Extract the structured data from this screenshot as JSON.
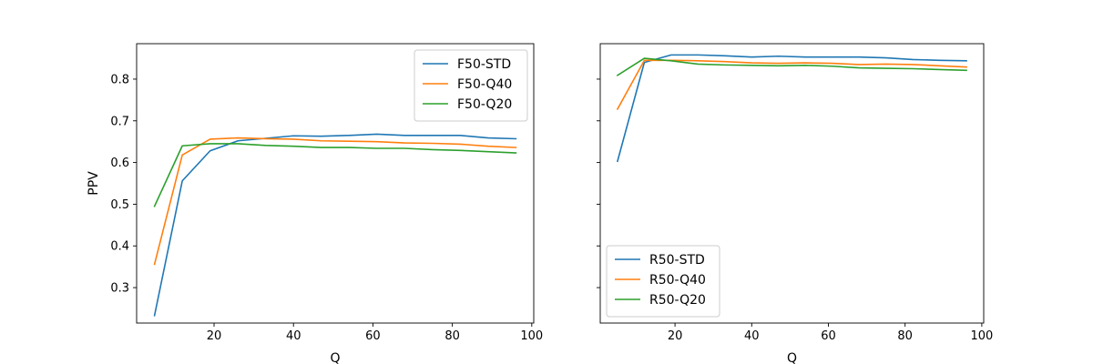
{
  "chart_data": [
    {
      "type": "line",
      "title": "",
      "xlabel": "Q",
      "ylabel": "PPV",
      "xlim": [
        0.5,
        100.5
      ],
      "ylim": [
        0.215,
        0.885
      ],
      "xticks": [
        20,
        40,
        60,
        80,
        100
      ],
      "yticks": [
        0.3,
        0.4,
        0.5,
        0.6,
        0.7,
        0.8
      ],
      "grid": false,
      "legend_position": "upper right",
      "x": [
        5,
        12,
        19,
        26,
        33,
        40,
        47,
        54,
        61,
        68,
        75,
        82,
        89,
        96
      ],
      "series": [
        {
          "name": "F50-STD",
          "color": "#1f77b4",
          "values": [
            0.233,
            0.556,
            0.628,
            0.652,
            0.658,
            0.664,
            0.663,
            0.665,
            0.668,
            0.665,
            0.665,
            0.665,
            0.659,
            0.657
          ]
        },
        {
          "name": "F50-Q40",
          "color": "#ff7f0e",
          "values": [
            0.356,
            0.618,
            0.656,
            0.659,
            0.657,
            0.656,
            0.652,
            0.651,
            0.65,
            0.647,
            0.646,
            0.644,
            0.639,
            0.636
          ]
        },
        {
          "name": "F50-Q20",
          "color": "#2ca02c",
          "values": [
            0.495,
            0.64,
            0.645,
            0.645,
            0.641,
            0.639,
            0.636,
            0.636,
            0.634,
            0.634,
            0.631,
            0.629,
            0.626,
            0.623
          ]
        }
      ]
    },
    {
      "type": "line",
      "title": "",
      "xlabel": "Q",
      "ylabel": "",
      "xlim": [
        0.5,
        100.5
      ],
      "ylim": [
        0.215,
        0.885
      ],
      "xticks": [
        20,
        40,
        60,
        80,
        100
      ],
      "yticks": [
        0.3,
        0.4,
        0.5,
        0.6,
        0.7,
        0.8
      ],
      "shared_y": true,
      "grid": false,
      "legend_position": "lower left",
      "x": [
        5,
        12,
        19,
        26,
        33,
        40,
        47,
        54,
        61,
        68,
        75,
        82,
        89,
        96
      ],
      "series": [
        {
          "name": "R50-STD",
          "color": "#1f77b4",
          "values": [
            0.603,
            0.84,
            0.858,
            0.858,
            0.856,
            0.853,
            0.855,
            0.853,
            0.853,
            0.853,
            0.851,
            0.847,
            0.845,
            0.844
          ]
        },
        {
          "name": "R50-Q40",
          "color": "#ff7f0e",
          "values": [
            0.728,
            0.845,
            0.845,
            0.844,
            0.842,
            0.839,
            0.838,
            0.839,
            0.838,
            0.835,
            0.836,
            0.835,
            0.832,
            0.829
          ]
        },
        {
          "name": "R50-Q20",
          "color": "#2ca02c",
          "values": [
            0.809,
            0.85,
            0.844,
            0.836,
            0.834,
            0.833,
            0.832,
            0.833,
            0.831,
            0.827,
            0.826,
            0.825,
            0.823,
            0.821
          ]
        }
      ]
    }
  ]
}
